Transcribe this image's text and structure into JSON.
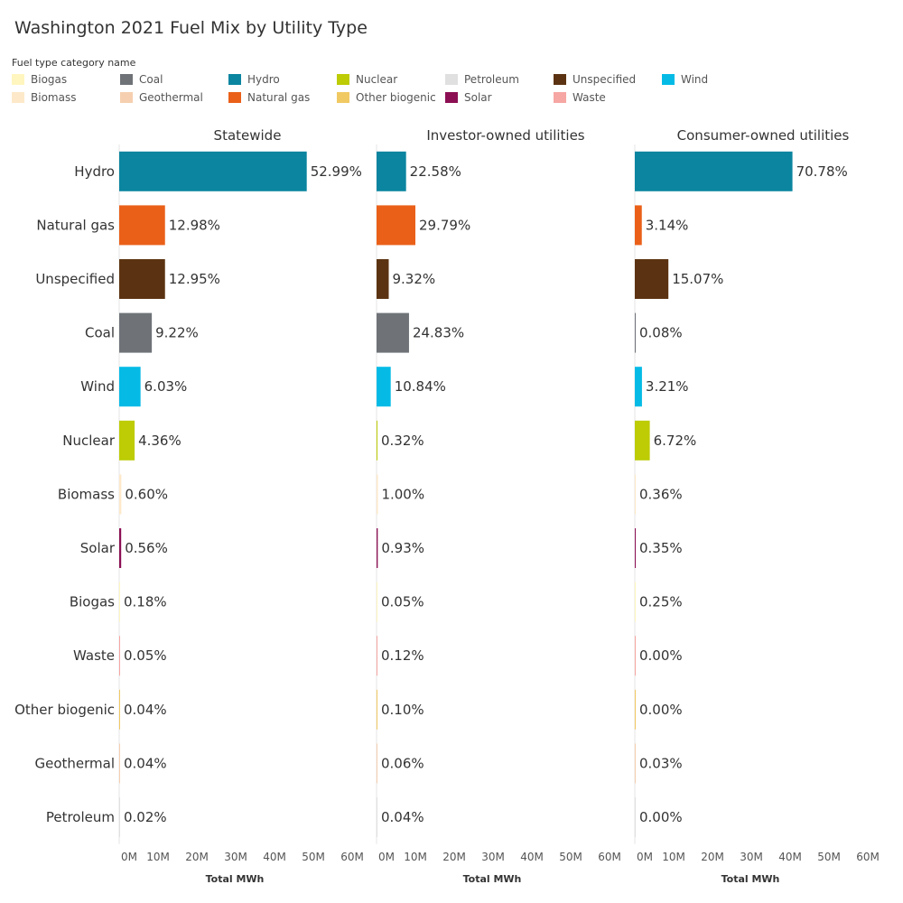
{
  "chart_data": {
    "type": "bar",
    "title": "Washington 2021 Fuel Mix by Utility Type",
    "legend_title": "Fuel type category name",
    "legend": [
      {
        "name": "Biogas",
        "color": "#fff6bf"
      },
      {
        "name": "Biomass",
        "color": "#fde9c9"
      },
      {
        "name": "Coal",
        "color": "#6f7378"
      },
      {
        "name": "Geothermal",
        "color": "#f6cfb0"
      },
      {
        "name": "Hydro",
        "color": "#0b85a0"
      },
      {
        "name": "Natural gas",
        "color": "#ea6019"
      },
      {
        "name": "Nuclear",
        "color": "#bdcc04"
      },
      {
        "name": "Other biogenic",
        "color": "#f1c963"
      },
      {
        "name": "Petroleum",
        "color": "#e0e0e0"
      },
      {
        "name": "Solar",
        "color": "#8c0f53"
      },
      {
        "name": "Unspecified",
        "color": "#5c3312"
      },
      {
        "name": "Waste",
        "color": "#f6a6a3"
      },
      {
        "name": "Wind",
        "color": "#05bbe6"
      }
    ],
    "categories": [
      "Hydro",
      "Natural gas",
      "Unspecified",
      "Coal",
      "Wind",
      "Nuclear",
      "Biomass",
      "Solar",
      "Biogas",
      "Waste",
      "Other biogenic",
      "Geothermal",
      "Petroleum"
    ],
    "xlabel": "Total MWh",
    "xlim": [
      0,
      60000000
    ],
    "xticks": [
      "0M",
      "10M",
      "20M",
      "30M",
      "40M",
      "50M",
      "60M"
    ],
    "grid": false,
    "legend_position": "top",
    "panels": [
      {
        "name": "Statewide",
        "values_mwh": [
          48300000,
          11800000,
          11800000,
          8400000,
          5500000,
          3970000,
          547000,
          510000,
          164000,
          46000,
          36000,
          36000,
          18000
        ],
        "labels": [
          "52.99%",
          "12.98%",
          "12.95%",
          "9.22%",
          "6.03%",
          "4.36%",
          "0.60%",
          "0.56%",
          "0.18%",
          "0.05%",
          "0.04%",
          "0.04%",
          "0.02%"
        ]
      },
      {
        "name": "Investor-owned utilities",
        "values_mwh": [
          7600000,
          10000000,
          3140000,
          8360000,
          3650000,
          108000,
          337000,
          313000,
          17000,
          40000,
          34000,
          20000,
          13000
        ],
        "labels": [
          "22.58%",
          "29.79%",
          "9.32%",
          "24.83%",
          "10.84%",
          "0.32%",
          "1.00%",
          "0.93%",
          "0.05%",
          "0.12%",
          "0.10%",
          "0.06%",
          "0.04%"
        ]
      },
      {
        "name": "Consumer-owned utilities",
        "values_mwh": [
          40600000,
          1800000,
          8650000,
          46000,
          1840000,
          3860000,
          207000,
          201000,
          143000,
          0,
          0,
          17000,
          0
        ],
        "labels": [
          "70.78%",
          "3.14%",
          "15.07%",
          "0.08%",
          "3.21%",
          "6.72%",
          "0.36%",
          "0.35%",
          "0.25%",
          "0.00%",
          "0.00%",
          "0.03%",
          "0.00%"
        ]
      }
    ]
  }
}
